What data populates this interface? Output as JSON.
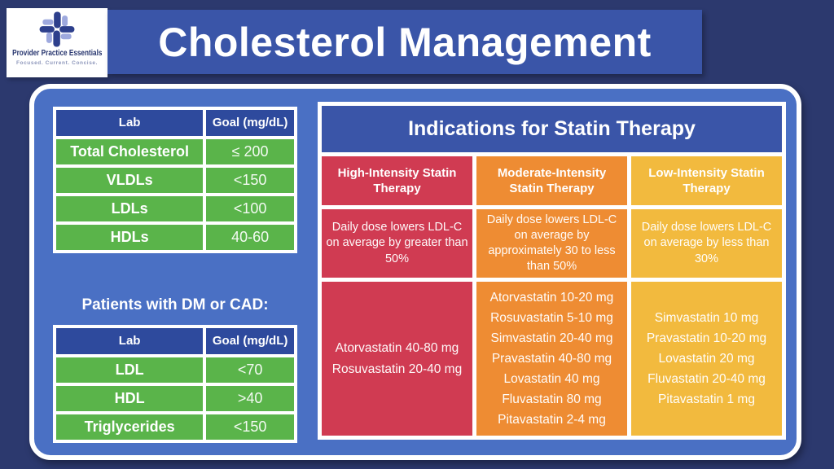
{
  "page": {
    "title": "Cholesterol Management"
  },
  "logo": {
    "name": "Provider Practice Essentials",
    "tagline": "Focused.  Current.  Concise.",
    "icon": "ppe-cross-icon",
    "icon_colors": {
      "dark": "#2d3f8c",
      "light": "#9ea9de"
    }
  },
  "colors": {
    "navy": "#2c396e",
    "banner_blue": "#3a55a8",
    "panel_blue": "#4a70c4",
    "header_blue": "#2e4a9d",
    "row_green": "#5ab44a"
  },
  "lab_goals_table": {
    "headers": [
      "Lab",
      "Goal (mg/dL)"
    ],
    "rows": [
      [
        "Total Cholesterol",
        "≤ 200"
      ],
      [
        "VLDLs",
        "<150"
      ],
      [
        "LDLs",
        "<100"
      ],
      [
        "HDLs",
        "40-60"
      ]
    ]
  },
  "dm_cad": {
    "heading": "Patients with DM or CAD:",
    "table": {
      "headers": [
        "Lab",
        "Goal (mg/dL)"
      ],
      "rows": [
        [
          "LDL",
          "<70"
        ],
        [
          "HDL",
          ">40"
        ],
        [
          "Triglycerides",
          "<150"
        ]
      ]
    }
  },
  "statin": {
    "title": "Indications for Statin Therapy",
    "columns": [
      {
        "id": "high",
        "header": "High-Intensity Statin Therapy",
        "description": "Daily dose lowers LDL-C on average by greater than 50%",
        "drugs": [
          "Atorvastatin 40-80 mg",
          "Rosuvastatin 20-40 mg"
        ],
        "color": "#d03b52"
      },
      {
        "id": "moderate",
        "header": "Moderate-Intensity Statin Therapy",
        "description": "Daily dose lowers LDL-C on average by approximately 30 to less than 50%",
        "drugs": [
          "Atorvastatin 10-20 mg",
          "Rosuvastatin 5-10 mg",
          "Simvastatin 20-40 mg",
          "Pravastatin 40-80 mg",
          "Lovastatin 40 mg",
          "Fluvastatin 80 mg",
          "Pitavastatin 2-4 mg"
        ],
        "color": "#ee8c33"
      },
      {
        "id": "low",
        "header": "Low-Intensity Statin Therapy",
        "description": "Daily dose lowers LDL-C on average by less than 30%",
        "drugs": [
          "Simvastatin 10 mg",
          "Pravastatin 10-20 mg",
          "Lovastatin 20 mg",
          "Fluvastatin 20-40 mg",
          "Pitavastatin 1 mg"
        ],
        "color": "#f2ba3e"
      }
    ]
  }
}
